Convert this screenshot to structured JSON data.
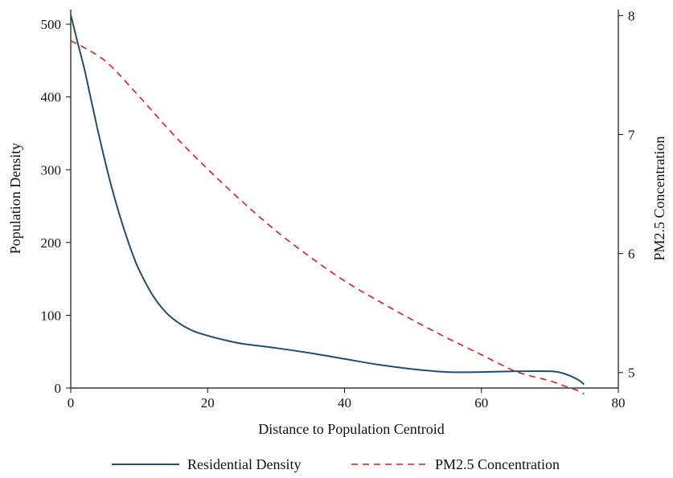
{
  "chart_data": {
    "type": "line",
    "xlabel": "Distance to Population Centroid",
    "ylabel": "Population Density",
    "y2label": "PM2.5 Concentration",
    "xlim": [
      0,
      80
    ],
    "ylim": [
      0,
      520
    ],
    "y2lim": [
      4.87,
      8.05
    ],
    "xticks": [
      "0",
      "20",
      "40",
      "60",
      "80"
    ],
    "yticks": [
      "0",
      "100",
      "200",
      "300",
      "400",
      "500"
    ],
    "y2ticks": [
      "5",
      "6",
      "7",
      "8"
    ],
    "grid": false,
    "legend_placement": "bottom",
    "series": [
      {
        "name": "Residential Density",
        "axis": "left",
        "color": "#1f4e6e",
        "style": "solid",
        "x": [
          0,
          1,
          2,
          3,
          4,
          5,
          6,
          7,
          8,
          9,
          10,
          12,
          14,
          16,
          18,
          20,
          22,
          25,
          30,
          35,
          40,
          45,
          50,
          55,
          60,
          65,
          70,
          72,
          74,
          75
        ],
        "y": [
          513,
          475,
          438,
          395,
          352,
          312,
          275,
          242,
          212,
          185,
          162,
          127,
          103,
          88,
          78,
          72,
          67,
          61,
          55,
          48,
          40,
          32,
          26,
          22,
          22,
          23,
          23,
          20,
          12,
          5
        ]
      },
      {
        "name": "PM2.5 Concentration",
        "axis": "right",
        "color": "#e31a1c",
        "style": "dashed",
        "x": [
          0,
          5,
          10,
          15,
          20,
          25,
          30,
          35,
          40,
          45,
          50,
          55,
          60,
          65,
          70,
          72,
          74,
          75
        ],
        "y": [
          7.79,
          7.62,
          7.32,
          7.0,
          6.71,
          6.44,
          6.19,
          5.97,
          5.77,
          5.6,
          5.44,
          5.29,
          5.15,
          5.01,
          4.93,
          4.89,
          4.85,
          4.82
        ]
      }
    ]
  }
}
